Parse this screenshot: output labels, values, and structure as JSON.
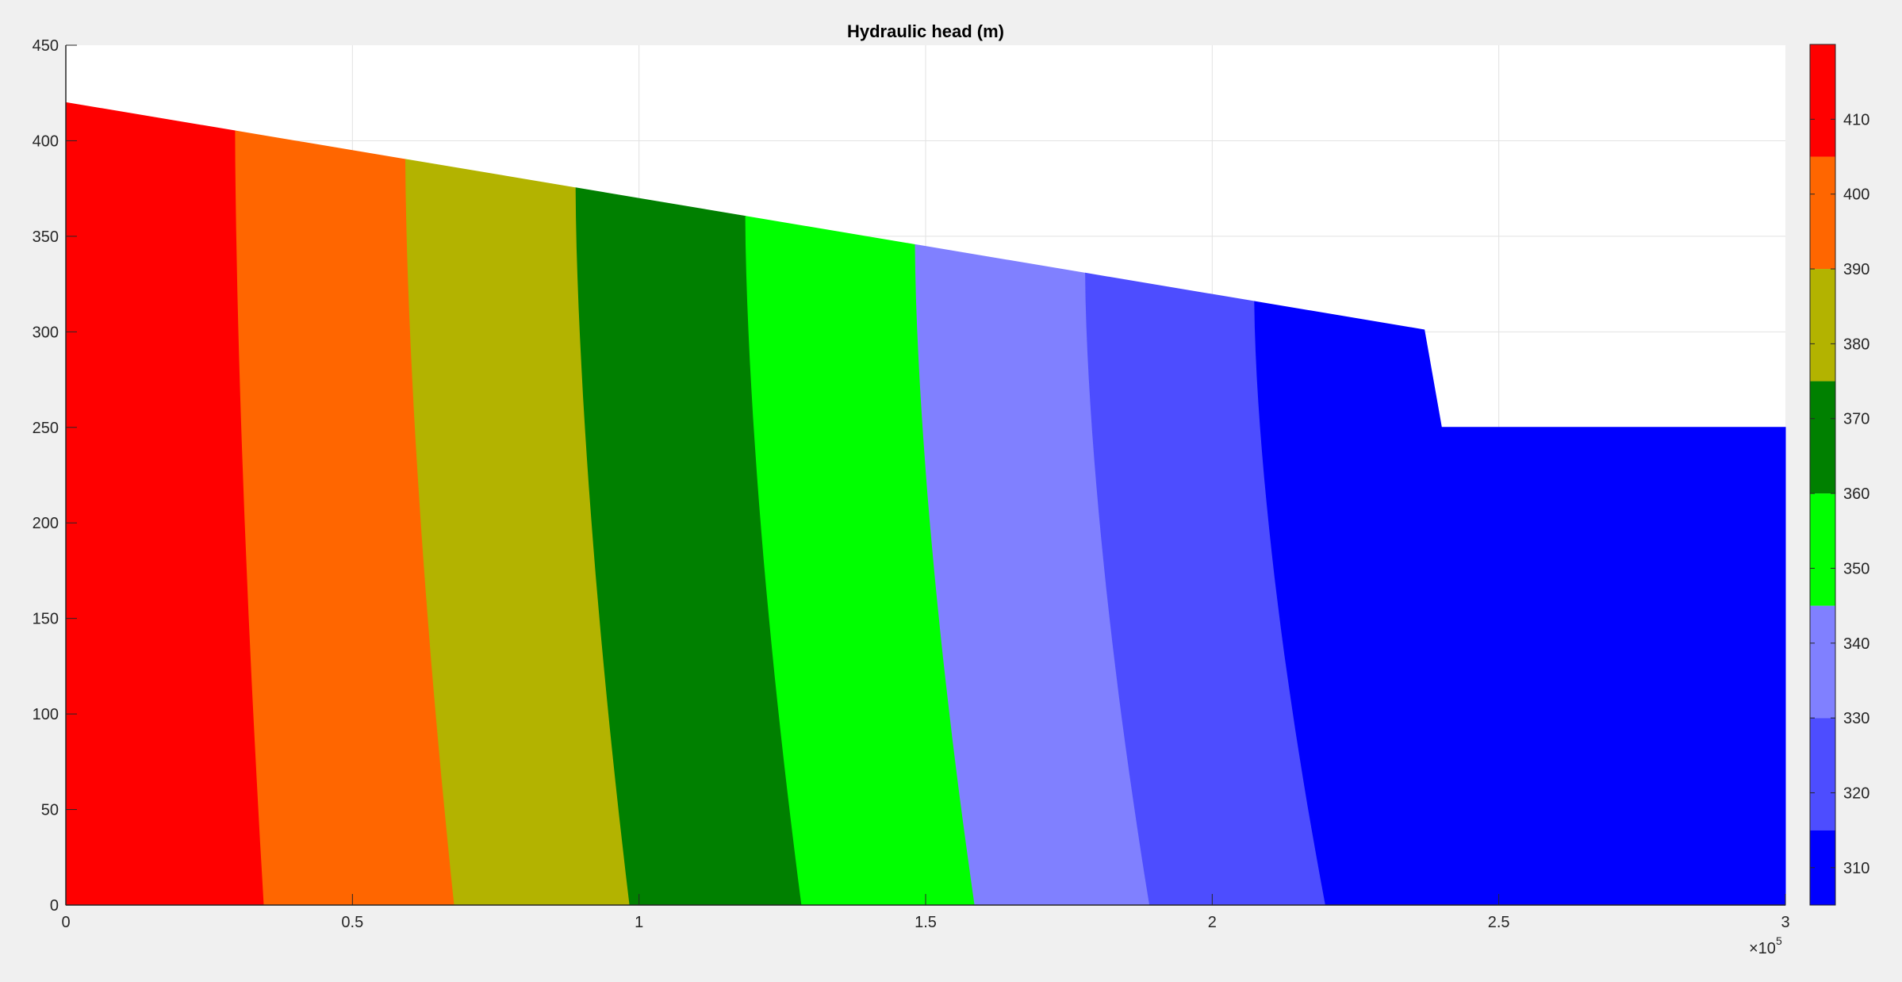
{
  "chart_data": {
    "type": "contourf",
    "title": "Hydraulic head (m)",
    "xlabel": "",
    "ylabel": "",
    "x_exponent_label": "×10",
    "x_exponent": "5",
    "xlim": [
      0,
      300000
    ],
    "ylim": [
      0,
      450
    ],
    "x_ticks": [
      0,
      50000,
      100000,
      150000,
      200000,
      250000,
      300000
    ],
    "x_tick_labels": [
      "0",
      "0.5",
      "1",
      "1.5",
      "2",
      "2.5",
      "3"
    ],
    "y_ticks": [
      0,
      50,
      100,
      150,
      200,
      250,
      300,
      350,
      400,
      450
    ],
    "y_tick_labels": [
      "0",
      "50",
      "100",
      "150",
      "200",
      "250",
      "300",
      "350",
      "400",
      "450"
    ],
    "grid": true,
    "domain_outline": [
      [
        0,
        0
      ],
      [
        0,
        420
      ],
      [
        237000,
        301
      ],
      [
        240000,
        250
      ],
      [
        300000,
        250
      ],
      [
        300000,
        0
      ]
    ],
    "contour_bands": [
      {
        "range": [
          405,
          420
        ],
        "color": "#ff0000",
        "top_x": [
          0,
          29600
        ],
        "bottom_x": [
          0,
          34600
        ]
      },
      {
        "range": [
          390,
          405
        ],
        "color": "#ff6600",
        "top_x": [
          29600,
          59300
        ],
        "bottom_x": [
          34600,
          67800
        ]
      },
      {
        "range": [
          375,
          390
        ],
        "color": "#b3b300",
        "top_x": [
          59300,
          89000
        ],
        "bottom_x": [
          67800,
          98400
        ]
      },
      {
        "range": [
          360,
          375
        ],
        "color": "#008000",
        "top_x": [
          89000,
          118600
        ],
        "bottom_x": [
          98400,
          128400
        ]
      },
      {
        "range": [
          345,
          360
        ],
        "color": "#00ff00",
        "top_x": [
          118600,
          148200
        ],
        "bottom_x": [
          128400,
          158600
        ]
      },
      {
        "range": [
          330,
          345
        ],
        "color": "#8080ff",
        "top_x": [
          148200,
          177900
        ],
        "bottom_x": [
          158600,
          189100
        ]
      },
      {
        "range": [
          315,
          330
        ],
        "color": "#4d4dff",
        "top_x": [
          177900,
          207400
        ],
        "bottom_x": [
          189100,
          219800
        ]
      },
      {
        "range": [
          305,
          315
        ],
        "color": "#0000ff",
        "top_x": [
          207400,
          300000
        ],
        "bottom_x": [
          219800,
          300000
        ]
      }
    ],
    "colorbar": {
      "range": [
        305,
        420
      ],
      "ticks": [
        310,
        320,
        330,
        340,
        350,
        360,
        370,
        380,
        390,
        400,
        410
      ],
      "tick_labels": [
        "310",
        "320",
        "330",
        "340",
        "350",
        "360",
        "370",
        "380",
        "390",
        "400",
        "410"
      ],
      "bands": [
        {
          "from": 305,
          "to": 315,
          "color": "#0000ff"
        },
        {
          "from": 315,
          "to": 330,
          "color": "#4d4dff"
        },
        {
          "from": 330,
          "to": 345,
          "color": "#8080ff"
        },
        {
          "from": 345,
          "to": 360,
          "color": "#00ff00"
        },
        {
          "from": 360,
          "to": 375,
          "color": "#008000"
        },
        {
          "from": 375,
          "to": 390,
          "color": "#b3b300"
        },
        {
          "from": 390,
          "to": 405,
          "color": "#ff6600"
        },
        {
          "from": 405,
          "to": 420,
          "color": "#ff0000"
        }
      ]
    }
  }
}
